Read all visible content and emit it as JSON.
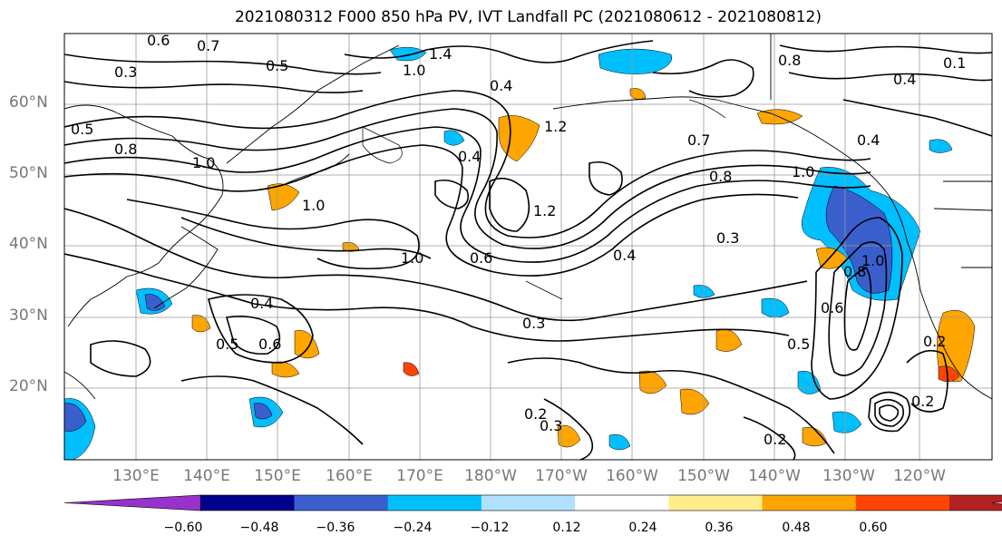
{
  "title": "2021080312 F000 850 hPa PV, IVT Landfall PC (2021080612 - 2021080812)",
  "map": {
    "lat_labels": [
      "60°N",
      "50°N",
      "40°N",
      "30°N",
      "20°N"
    ],
    "lon_labels": [
      "130°E",
      "140°E",
      "150°E",
      "160°E",
      "170°E",
      "180°W",
      "170°W",
      "160°W",
      "150°W",
      "140°W",
      "130°W",
      "120°W"
    ],
    "contour_labels": [
      "0.6",
      "0.7",
      "1.4",
      "0.8",
      "0.1",
      "0.3",
      "0.5",
      "1.0",
      "0.4",
      "0.4",
      "0.5",
      "0.8",
      "1.0",
      "0.4",
      "1.2",
      "0.7",
      "0.4",
      "1.0",
      "0.8",
      "1.0",
      "1.2",
      "1.0",
      "0.6",
      "0.4",
      "0.3",
      "0.4",
      "0.5",
      "0.6",
      "0.3",
      "0.5",
      "0.2",
      "0.3",
      "0.2",
      "0.2",
      "0.6",
      "0.8",
      "1.0",
      "0.2"
    ]
  },
  "colorbar": {
    "ticks": [
      "−0.60",
      "−0.48",
      "−0.36",
      "−0.24",
      "−0.12",
      "0.12",
      "0.24",
      "0.36",
      "0.48",
      "0.60"
    ],
    "colors": [
      "#9932cc",
      "#00008b",
      "#3a5fcd",
      "#00bfff",
      "#b0e2ff",
      "#ffffff",
      "#ffec8b",
      "#ffa500",
      "#ff4500",
      "#b22222",
      "#ff82ab"
    ]
  }
}
